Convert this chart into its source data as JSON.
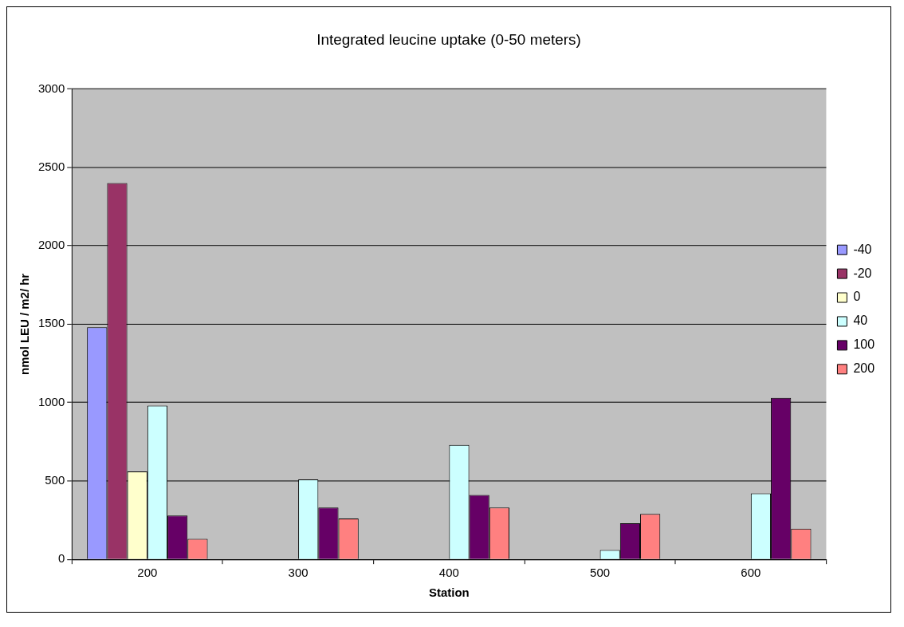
{
  "chart_data": {
    "type": "bar",
    "title": "Integrated leucine uptake (0-50 meters)",
    "xlabel": "Station",
    "ylabel": "nmol LEU / m2/ hr",
    "categories": [
      "200",
      "300",
      "400",
      "500",
      "600"
    ],
    "series": [
      {
        "name": "-40",
        "color": "#9999ff",
        "values": [
          1480,
          null,
          null,
          null,
          null
        ]
      },
      {
        "name": "-20",
        "color": "#993366",
        "values": [
          2400,
          null,
          null,
          null,
          null
        ]
      },
      {
        "name": "0",
        "color": "#ffffcc",
        "values": [
          560,
          null,
          null,
          null,
          null
        ]
      },
      {
        "name": "40",
        "color": "#ccffff",
        "values": [
          980,
          510,
          730,
          60,
          420
        ]
      },
      {
        "name": "100",
        "color": "#660066",
        "values": [
          280,
          330,
          410,
          230,
          1030
        ]
      },
      {
        "name": "200",
        "color": "#ff8080",
        "values": [
          130,
          260,
          330,
          290,
          195
        ]
      }
    ],
    "ylim": [
      0,
      3000
    ],
    "yticks": [
      0,
      500,
      1000,
      1500,
      2000,
      2500,
      3000
    ],
    "grid": "y",
    "legend": "right"
  }
}
